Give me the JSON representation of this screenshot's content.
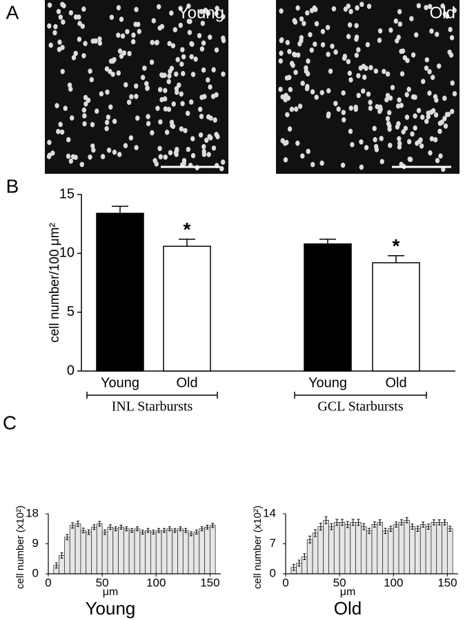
{
  "chart_data": [
    {
      "type": "image",
      "panel_label": "A",
      "images": [
        {
          "label": "Young"
        },
        {
          "label": "Old"
        }
      ]
    },
    {
      "type": "bar",
      "panel_label": "B",
      "ylabel": "cell number/100 μm²",
      "ylim": [
        0,
        15
      ],
      "yticks": [
        0,
        5,
        10,
        15
      ],
      "colors": [
        "#000000",
        "#ffffff"
      ],
      "groups": [
        {
          "label": "INL Starbursts",
          "categories": [
            "Young",
            "Old"
          ],
          "values": [
            13.4,
            10.6
          ],
          "errors": [
            0.6,
            0.6
          ],
          "annotations": [
            null,
            "*"
          ]
        },
        {
          "label": "GCL Starbursts",
          "categories": [
            "Young",
            "Old"
          ],
          "values": [
            10.8,
            9.2
          ],
          "errors": [
            0.4,
            0.6
          ],
          "annotations": [
            null,
            "*"
          ]
        }
      ]
    },
    {
      "type": "histogram",
      "panel_label": "C",
      "title": "Young",
      "xlabel": "μm",
      "ylabel": "cell number (x10²)",
      "color": "#e6e6e6",
      "xlim": [
        0,
        160
      ],
      "xticks": [
        0,
        50,
        100,
        150
      ],
      "ylim": [
        0,
        18
      ],
      "yticks": [
        0,
        9,
        18
      ],
      "bins": [
        5,
        10,
        15,
        20,
        25,
        30,
        35,
        40,
        45,
        50,
        55,
        60,
        65,
        70,
        75,
        80,
        85,
        90,
        95,
        100,
        105,
        110,
        115,
        120,
        125,
        130,
        135,
        140,
        145,
        150,
        155
      ],
      "values": [
        2.5,
        5.5,
        11,
        14.5,
        15,
        13,
        12.5,
        14,
        15,
        12.5,
        14,
        13.5,
        14,
        13.5,
        13,
        13.5,
        12.5,
        13,
        12.5,
        13,
        13,
        13.5,
        13,
        13.5,
        13,
        12,
        12.5,
        13.5,
        14,
        14.5
      ],
      "errors": [
        0.8,
        0.8,
        0.8,
        0.8,
        0.8,
        0.7,
        0.7,
        0.7,
        0.7,
        0.7,
        0.7,
        0.6,
        0.6,
        0.6,
        0.6,
        0.6,
        0.6,
        0.6,
        0.6,
        0.6,
        0.6,
        0.6,
        0.6,
        0.6,
        0.6,
        0.6,
        0.6,
        0.6,
        0.6,
        0.6
      ]
    },
    {
      "type": "histogram",
      "title": "Old",
      "xlabel": "μm",
      "ylabel": "cell number (x10²)",
      "color": "#e6e6e6",
      "xlim": [
        0,
        160
      ],
      "xticks": [
        0,
        50,
        100,
        150
      ],
      "ylim": [
        0,
        14
      ],
      "yticks": [
        0,
        7,
        14
      ],
      "bins": [
        5,
        10,
        15,
        20,
        25,
        30,
        35,
        40,
        45,
        50,
        55,
        60,
        65,
        70,
        75,
        80,
        85,
        90,
        95,
        100,
        105,
        110,
        115,
        120,
        125,
        130,
        135,
        140,
        145,
        150,
        155
      ],
      "values": [
        1.5,
        2.5,
        4,
        8,
        9.5,
        11,
        12.5,
        11,
        12,
        12,
        11.5,
        12,
        12,
        11,
        10,
        11.5,
        12,
        10,
        10.5,
        11.5,
        12,
        12.5,
        11,
        10.5,
        11.5,
        11,
        12,
        12,
        12,
        10.5
      ],
      "errors": [
        0.7,
        0.7,
        0.7,
        0.8,
        0.8,
        0.8,
        0.8,
        0.7,
        0.7,
        0.7,
        0.7,
        0.7,
        0.7,
        0.7,
        0.6,
        0.6,
        0.6,
        0.6,
        0.6,
        0.6,
        0.6,
        0.6,
        0.6,
        0.6,
        0.6,
        0.6,
        0.6,
        0.6,
        0.6,
        0.6
      ]
    }
  ]
}
